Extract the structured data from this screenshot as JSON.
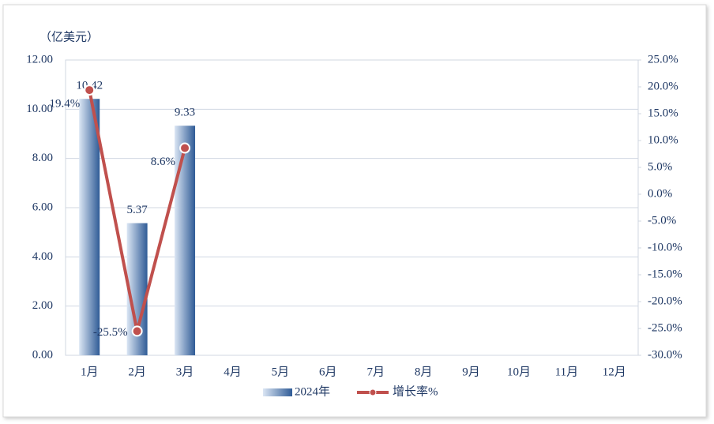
{
  "chart_data": {
    "type": "bar-line",
    "y_label": "（亿美元）",
    "categories": [
      "1月",
      "2月",
      "3月",
      "4月",
      "5月",
      "6月",
      "7月",
      "8月",
      "9月",
      "10月",
      "11月",
      "12月"
    ],
    "series": [
      {
        "name": "2024年",
        "type": "bar",
        "color": "#2f5b96",
        "values": [
          10.42,
          5.37,
          9.33,
          null,
          null,
          null,
          null,
          null,
          null,
          null,
          null,
          null
        ]
      },
      {
        "name": "增长率%",
        "type": "line",
        "axis": "y2",
        "color": "#c0504d",
        "values": [
          19.4,
          -25.5,
          8.6,
          null,
          null,
          null,
          null,
          null,
          null,
          null,
          null,
          null
        ],
        "value_labels": [
          "19.4%",
          "-25.5%",
          "8.6%",
          null,
          null,
          null,
          null,
          null,
          null,
          null,
          null,
          null
        ]
      }
    ],
    "ylim": [
      0,
      12
    ],
    "yticks": [
      {
        "value": 0,
        "label": "0.00"
      },
      {
        "value": 2,
        "label": "2.00"
      },
      {
        "value": 4,
        "label": "4.00"
      },
      {
        "value": 6,
        "label": "6.00"
      },
      {
        "value": 8,
        "label": "8.00"
      },
      {
        "value": 10,
        "label": "10.00"
      },
      {
        "value": 12,
        "label": "12.00"
      }
    ],
    "y2lim": [
      -30,
      25
    ],
    "y2ticks": [
      {
        "value": -30,
        "label": "-30.0%"
      },
      {
        "value": -25,
        "label": "-25.0%"
      },
      {
        "value": -20,
        "label": "-20.0%"
      },
      {
        "value": -15,
        "label": "-15.0%"
      },
      {
        "value": -10,
        "label": "-10.0%"
      },
      {
        "value": -5,
        "label": "-5.0%"
      },
      {
        "value": 0,
        "label": "0.0%"
      },
      {
        "value": 5,
        "label": "5.0%"
      },
      {
        "value": 10,
        "label": "10.0%"
      },
      {
        "value": 15,
        "label": "15.0%"
      },
      {
        "value": 20,
        "label": "20.0%"
      },
      {
        "value": 25,
        "label": "25.0%"
      }
    ],
    "grid": true
  }
}
